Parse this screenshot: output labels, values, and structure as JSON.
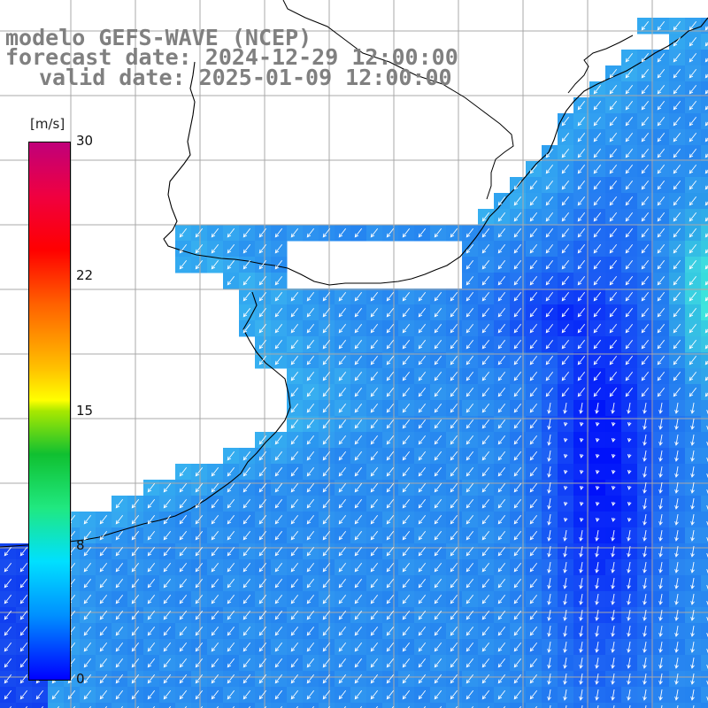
{
  "title": {
    "line1": "modelo GEFS-WAVE (NCEP)",
    "line2": "forecast date: 2024-12-29 12:00:00",
    "line3": "valid date: 2025-01-09 12:00:00"
  },
  "colorbar": {
    "units": "[m/s]",
    "ticks": [
      "30",
      "22",
      "15",
      "8",
      "0"
    ],
    "range": [
      0,
      30
    ],
    "colors": [
      "#0000ff",
      "#00c8ff",
      "#10c030",
      "#ffff00",
      "#ff0000",
      "#c0007a"
    ]
  },
  "map": {
    "land_color": "#ffffff",
    "ocean_base_color": "#2a8df0",
    "grid_color": "#aaaaaa",
    "vector_color": "#ffffff",
    "field": "wind speed and direction",
    "prevailing_direction": "from north-east"
  }
}
